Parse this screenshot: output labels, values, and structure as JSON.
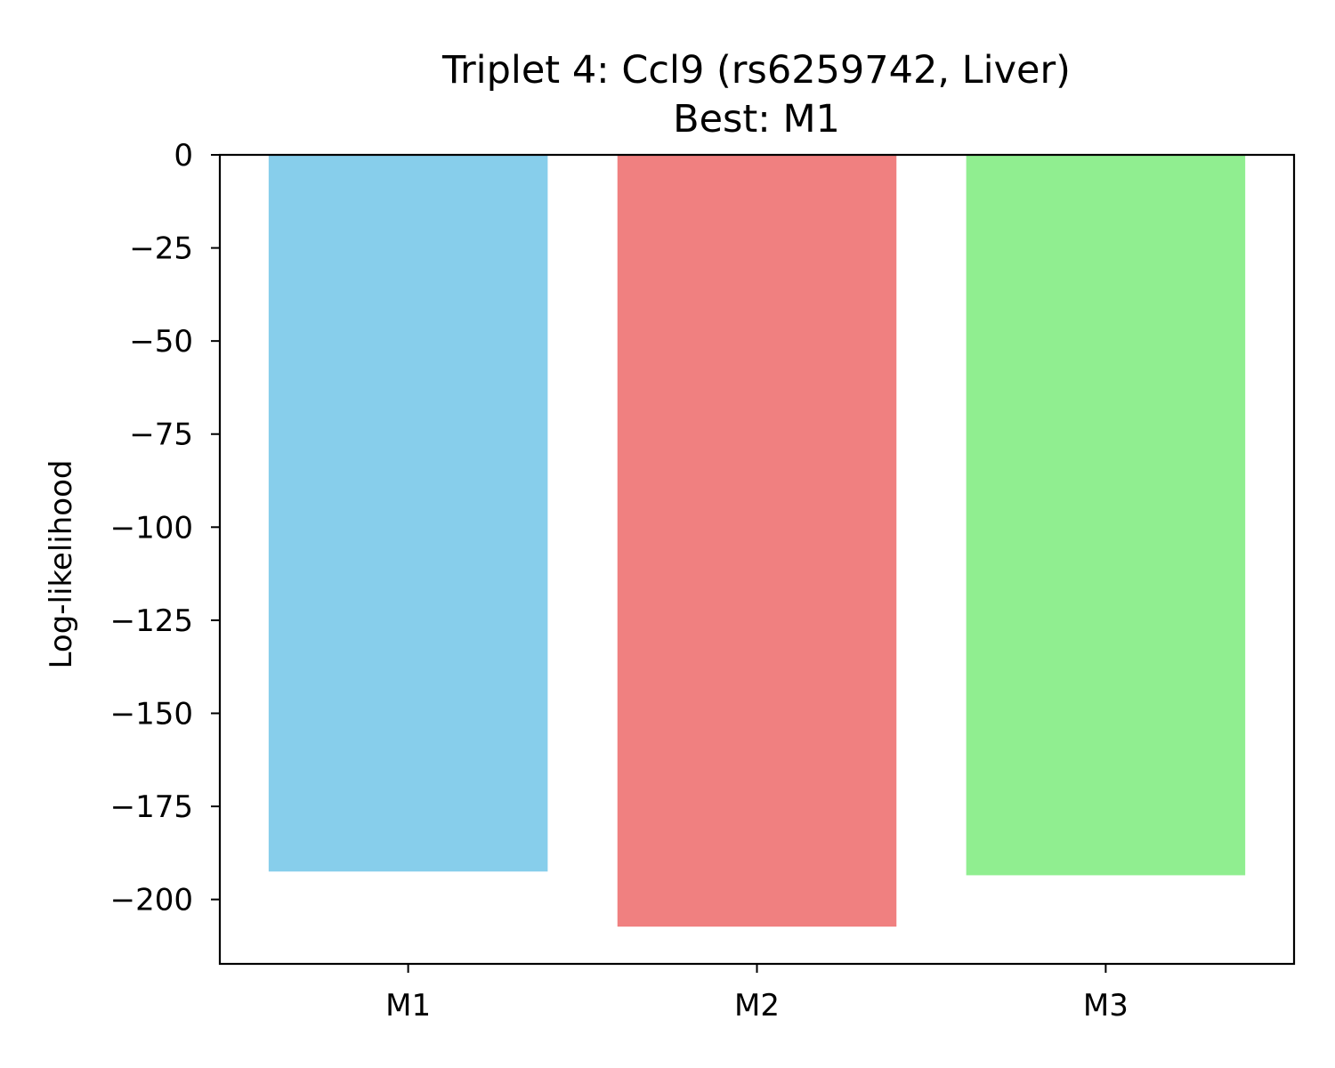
{
  "chart_data": {
    "type": "bar",
    "title": "Triplet 4: Ccl9 (rs6259742, Liver)",
    "subtitle": "Best: M1",
    "xlabel": "",
    "ylabel": "Log-likelihood",
    "categories": [
      "M1",
      "M2",
      "M3"
    ],
    "values": [
      -192.5,
      -207.3,
      -193.5
    ],
    "colors": [
      "#87CEEB",
      "#F08080",
      "#90EE90"
    ],
    "ylim": [
      -217.3,
      0
    ],
    "yticks": [
      0,
      -25,
      -50,
      -75,
      -100,
      -125,
      -150,
      -175,
      -200
    ],
    "ytick_labels": [
      "0",
      "−25",
      "−50",
      "−75",
      "−100",
      "−125",
      "−150",
      "−175",
      "−200"
    ],
    "grid": false,
    "legend": "none"
  }
}
